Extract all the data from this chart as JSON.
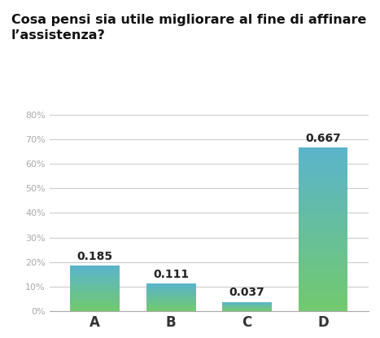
{
  "title_line1": "Cosa pensi sia utile migliorare al fine di affinare",
  "title_line2": "l’assistenza?",
  "categories": [
    "A",
    "B",
    "C",
    "D"
  ],
  "values": [
    0.185,
    0.111,
    0.037,
    0.667
  ],
  "ylim": [
    0,
    0.8
  ],
  "yticks": [
    0.0,
    0.1,
    0.2,
    0.3,
    0.4,
    0.5,
    0.6,
    0.7,
    0.8
  ],
  "ytick_labels": [
    "0%",
    "10%",
    "20%",
    "30%",
    "40%",
    "50%",
    "60%",
    "70%",
    "80%"
  ],
  "background_color": "#ffffff",
  "grid_color": "#cccccc",
  "bar_color_top": "#5ab4cc",
  "bar_color_bottom": "#72c96e",
  "title_fontsize": 11.5,
  "label_fontsize": 12,
  "value_fontsize": 10,
  "tick_fontsize": 8,
  "bar_width": 0.65
}
